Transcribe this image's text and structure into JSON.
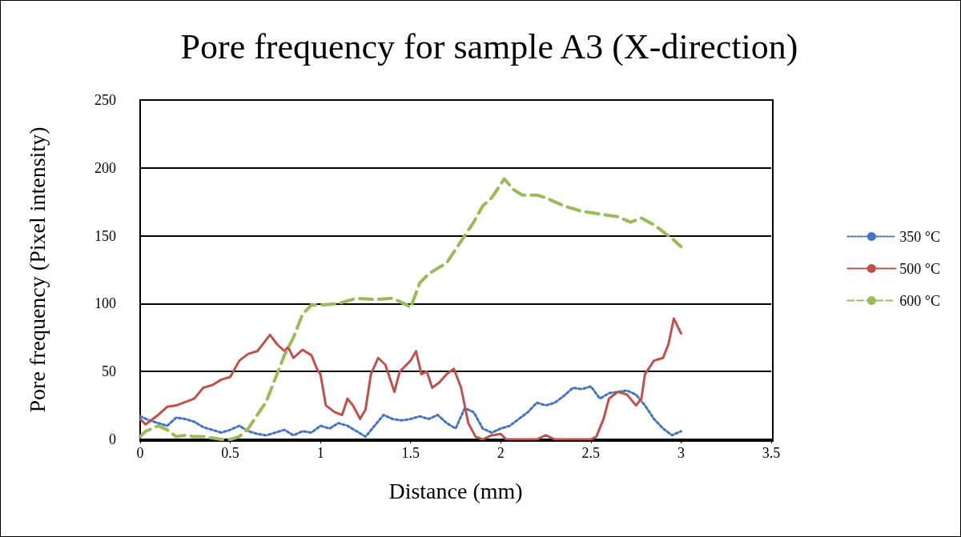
{
  "chart_data": {
    "type": "line",
    "title": "Pore frequency for sample A3 (X-direction)",
    "xlabel": "Distance (mm)",
    "ylabel": "Pore frequency (Pixel intensity)",
    "xlim": [
      0,
      3.5
    ],
    "xticks": [
      0,
      0.5,
      1,
      1.5,
      2,
      2.5,
      3,
      3.5
    ],
    "ylim": [
      0,
      250
    ],
    "yticks": [
      0,
      50,
      100,
      150,
      200,
      250
    ],
    "grid": "y",
    "legend": "right",
    "marker": "none",
    "series": [
      {
        "name": "350 °C",
        "color": "#4472c4",
        "line_style": "dotted",
        "x": [
          0,
          0.05,
          0.1,
          0.15,
          0.2,
          0.25,
          0.3,
          0.35,
          0.4,
          0.45,
          0.5,
          0.55,
          0.6,
          0.65,
          0.7,
          0.75,
          0.8,
          0.85,
          0.9,
          0.95,
          1.0,
          1.05,
          1.1,
          1.15,
          1.2,
          1.25,
          1.3,
          1.35,
          1.4,
          1.45,
          1.5,
          1.55,
          1.6,
          1.65,
          1.7,
          1.75,
          1.8,
          1.85,
          1.9,
          1.95,
          2.0,
          2.05,
          2.1,
          2.15,
          2.2,
          2.25,
          2.3,
          2.35,
          2.4,
          2.45,
          2.5,
          2.55,
          2.6,
          2.65,
          2.7,
          2.75,
          2.8,
          2.85,
          2.9,
          2.95,
          3.0
        ],
        "values": [
          17,
          14,
          12,
          10,
          16,
          15,
          13,
          9,
          7,
          5,
          7,
          10,
          6,
          4,
          3,
          5,
          7,
          3,
          6,
          5,
          10,
          8,
          12,
          10,
          6,
          2,
          10,
          18,
          15,
          14,
          15,
          17,
          15,
          18,
          12,
          8,
          23,
          20,
          8,
          5,
          8,
          10,
          15,
          20,
          27,
          25,
          27,
          32,
          38,
          37,
          39,
          30,
          34,
          35,
          36,
          33,
          25,
          15,
          8,
          3,
          6
        ]
      },
      {
        "name": "500 °C",
        "color": "#c0504d",
        "line_style": "solid",
        "x": [
          0,
          0.03,
          0.1,
          0.15,
          0.2,
          0.3,
          0.35,
          0.4,
          0.45,
          0.5,
          0.55,
          0.6,
          0.65,
          0.68,
          0.72,
          0.76,
          0.8,
          0.82,
          0.85,
          0.9,
          0.95,
          0.98,
          1.0,
          1.03,
          1.08,
          1.12,
          1.15,
          1.18,
          1.22,
          1.25,
          1.28,
          1.32,
          1.36,
          1.41,
          1.44,
          1.5,
          1.53,
          1.56,
          1.59,
          1.62,
          1.66,
          1.7,
          1.74,
          1.78,
          1.82,
          1.86,
          1.9,
          1.95,
          2.0,
          2.03,
          2.2,
          2.25,
          2.3,
          2.5,
          2.53,
          2.57,
          2.6,
          2.65,
          2.7,
          2.75,
          2.78,
          2.8,
          2.85,
          2.9,
          2.93,
          2.96,
          3.0
        ],
        "values": [
          15,
          11,
          18,
          24,
          25,
          30,
          38,
          40,
          44,
          46,
          58,
          63,
          65,
          70,
          77,
          70,
          65,
          68,
          60,
          66,
          62,
          52,
          48,
          25,
          20,
          18,
          30,
          25,
          15,
          22,
          48,
          60,
          55,
          35,
          50,
          58,
          65,
          48,
          50,
          38,
          42,
          48,
          52,
          38,
          12,
          2,
          0,
          3,
          4,
          0,
          0,
          3,
          0,
          0,
          2,
          15,
          30,
          35,
          33,
          25,
          30,
          48,
          58,
          60,
          70,
          89,
          78
        ]
      },
      {
        "name": "600 °C",
        "color": "#9bbb59",
        "line_style": "dashed",
        "x": [
          0,
          0.03,
          0.07,
          0.1,
          0.15,
          0.2,
          0.25,
          0.3,
          0.35,
          0.4,
          0.45,
          0.5,
          0.55,
          0.6,
          0.65,
          0.7,
          0.75,
          0.8,
          0.85,
          0.9,
          0.95,
          1.0,
          1.1,
          1.2,
          1.3,
          1.4,
          1.48,
          1.5,
          1.55,
          1.6,
          1.65,
          1.7,
          1.75,
          1.8,
          1.85,
          1.9,
          1.95,
          2.02,
          2.07,
          2.12,
          2.2,
          2.25,
          2.35,
          2.45,
          2.55,
          2.65,
          2.72,
          2.78,
          2.85,
          2.95,
          3.0
        ],
        "values": [
          2,
          6,
          8,
          10,
          7,
          2,
          3,
          2,
          2,
          1,
          0,
          0,
          2,
          8,
          18,
          28,
          45,
          62,
          75,
          92,
          99,
          99,
          100,
          104,
          103,
          104,
          99,
          97,
          115,
          122,
          126,
          130,
          140,
          150,
          160,
          172,
          178,
          192,
          184,
          180,
          180,
          178,
          172,
          168,
          166,
          164,
          160,
          163,
          158,
          148,
          142
        ]
      }
    ]
  }
}
